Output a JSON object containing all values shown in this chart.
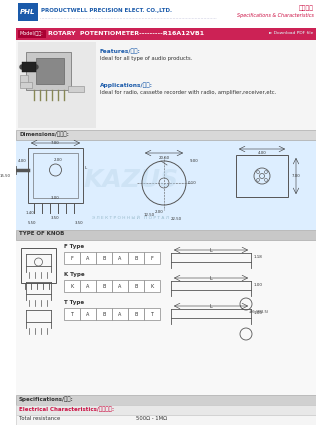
{
  "title_company": "PRODUCTWELL PRECISION ELECT. CO.,LTD.",
  "title_chinese": "产品功能",
  "title_spec": "Specifications & Characteristics",
  "model_label": "Model/型号:",
  "model_name": "ROTARY  POTENTIOMETER---------R16A12VB1",
  "download": "► Download PDF file",
  "features_label": "Features/特点:",
  "features_text": "Ideal for all type of audio products.",
  "applications_label": "Applications/应用:",
  "applications_text": "Ideal for radio, cassette recorder with radio, amplifier,receiver,etc.",
  "dimensions_label": "Dimensions/外形图:",
  "type_of_knob_label": "TYPE OF KNOB",
  "f_type": "F Type",
  "k_type": "K Type",
  "t_type": "T Type",
  "specs_label": "Specifications/规格:",
  "electrical_label": "Electrical Characteristics/电气特性:",
  "resistance_label": "Total resistance",
  "resistance_value": "500Ω - 1MΩ",
  "color_blue": "#1a5aaa",
  "color_red": "#cc1144",
  "color_pink_bar": "#cc2255",
  "color_dark": "#333333",
  "color_white": "#ffffff",
  "color_gray_bg": "#f0f0f0",
  "color_section_hdr": "#d0d0d0",
  "color_diagram_bg": "#ddeeff",
  "color_knob_bg": "#f8f8f8",
  "color_line": "#555555"
}
